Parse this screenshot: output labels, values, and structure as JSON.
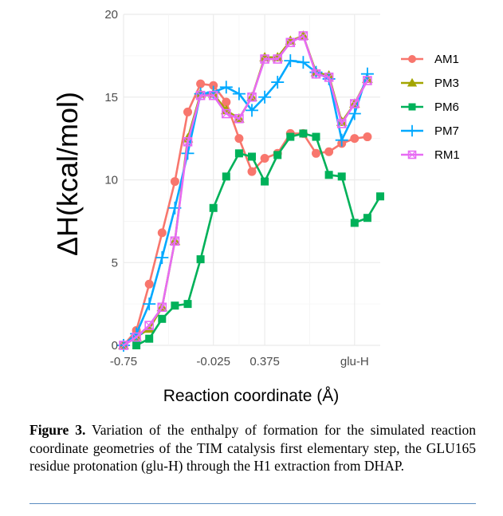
{
  "chart_data": {
    "type": "line",
    "xlabel": "Reaction coordinate (Å)",
    "ylabel": "ΔH(kcal/mol)",
    "ylim": [
      0,
      20
    ],
    "yticks": [
      0,
      5,
      10,
      15,
      20
    ],
    "x_count": 21,
    "xtick_labels": [
      {
        "index": 0,
        "label": "-0.75"
      },
      {
        "index": 7,
        "label": "-0.025"
      },
      {
        "index": 11,
        "label": "0.375"
      },
      {
        "index": 18,
        "label": "glu-H"
      }
    ],
    "grid": true,
    "legend_position": "right",
    "series": [
      {
        "name": "AM1",
        "color": "#f8766d",
        "marker": "circle",
        "values": [
          0.0,
          0.9,
          3.7,
          6.8,
          9.9,
          14.1,
          15.8,
          15.7,
          14.7,
          12.5,
          10.5,
          11.3,
          11.6,
          12.8,
          12.8,
          11.6,
          11.7,
          12.2,
          12.5,
          12.6,
          null
        ]
      },
      {
        "name": "PM3",
        "color": "#a3a500",
        "marker": "triangle",
        "values": [
          0.0,
          0.5,
          1.0,
          2.3,
          6.3,
          12.5,
          15.2,
          15.2,
          14.2,
          13.7,
          15.0,
          17.4,
          17.4,
          18.4,
          18.7,
          16.5,
          16.3,
          13.5,
          14.6,
          16.1,
          null
        ]
      },
      {
        "name": "PM6",
        "color": "#00b159",
        "marker": "square",
        "values": [
          null,
          0.0,
          0.4,
          1.6,
          2.4,
          2.5,
          5.2,
          8.3,
          10.2,
          11.6,
          11.4,
          9.9,
          11.5,
          12.6,
          12.8,
          12.6,
          10.3,
          10.2,
          7.4,
          7.7,
          9.0
        ]
      },
      {
        "name": "PM7",
        "color": "#00a9ff",
        "marker": "plus",
        "values": [
          0.0,
          0.7,
          2.5,
          5.3,
          8.3,
          11.6,
          15.2,
          15.3,
          15.6,
          15.2,
          14.2,
          15.0,
          15.9,
          17.2,
          17.1,
          16.5,
          16.1,
          12.4,
          14.0,
          16.4,
          null
        ]
      },
      {
        "name": "RM1",
        "color": "#e76bf3",
        "marker": "square-x",
        "values": [
          0.0,
          0.5,
          1.2,
          2.3,
          6.3,
          12.3,
          15.1,
          15.1,
          14.0,
          13.7,
          15.0,
          17.3,
          17.3,
          18.3,
          18.7,
          16.4,
          16.2,
          13.4,
          14.6,
          16.0,
          null
        ]
      }
    ]
  },
  "caption": {
    "label": "Figure 3.",
    "text": " Variation of the enthalpy of formation for the simulated reaction coordinate geometries of the TIM catalysis first elementary step, the GLU165 residue protonation (glu-H) through the H1 extraction from DHAP."
  }
}
